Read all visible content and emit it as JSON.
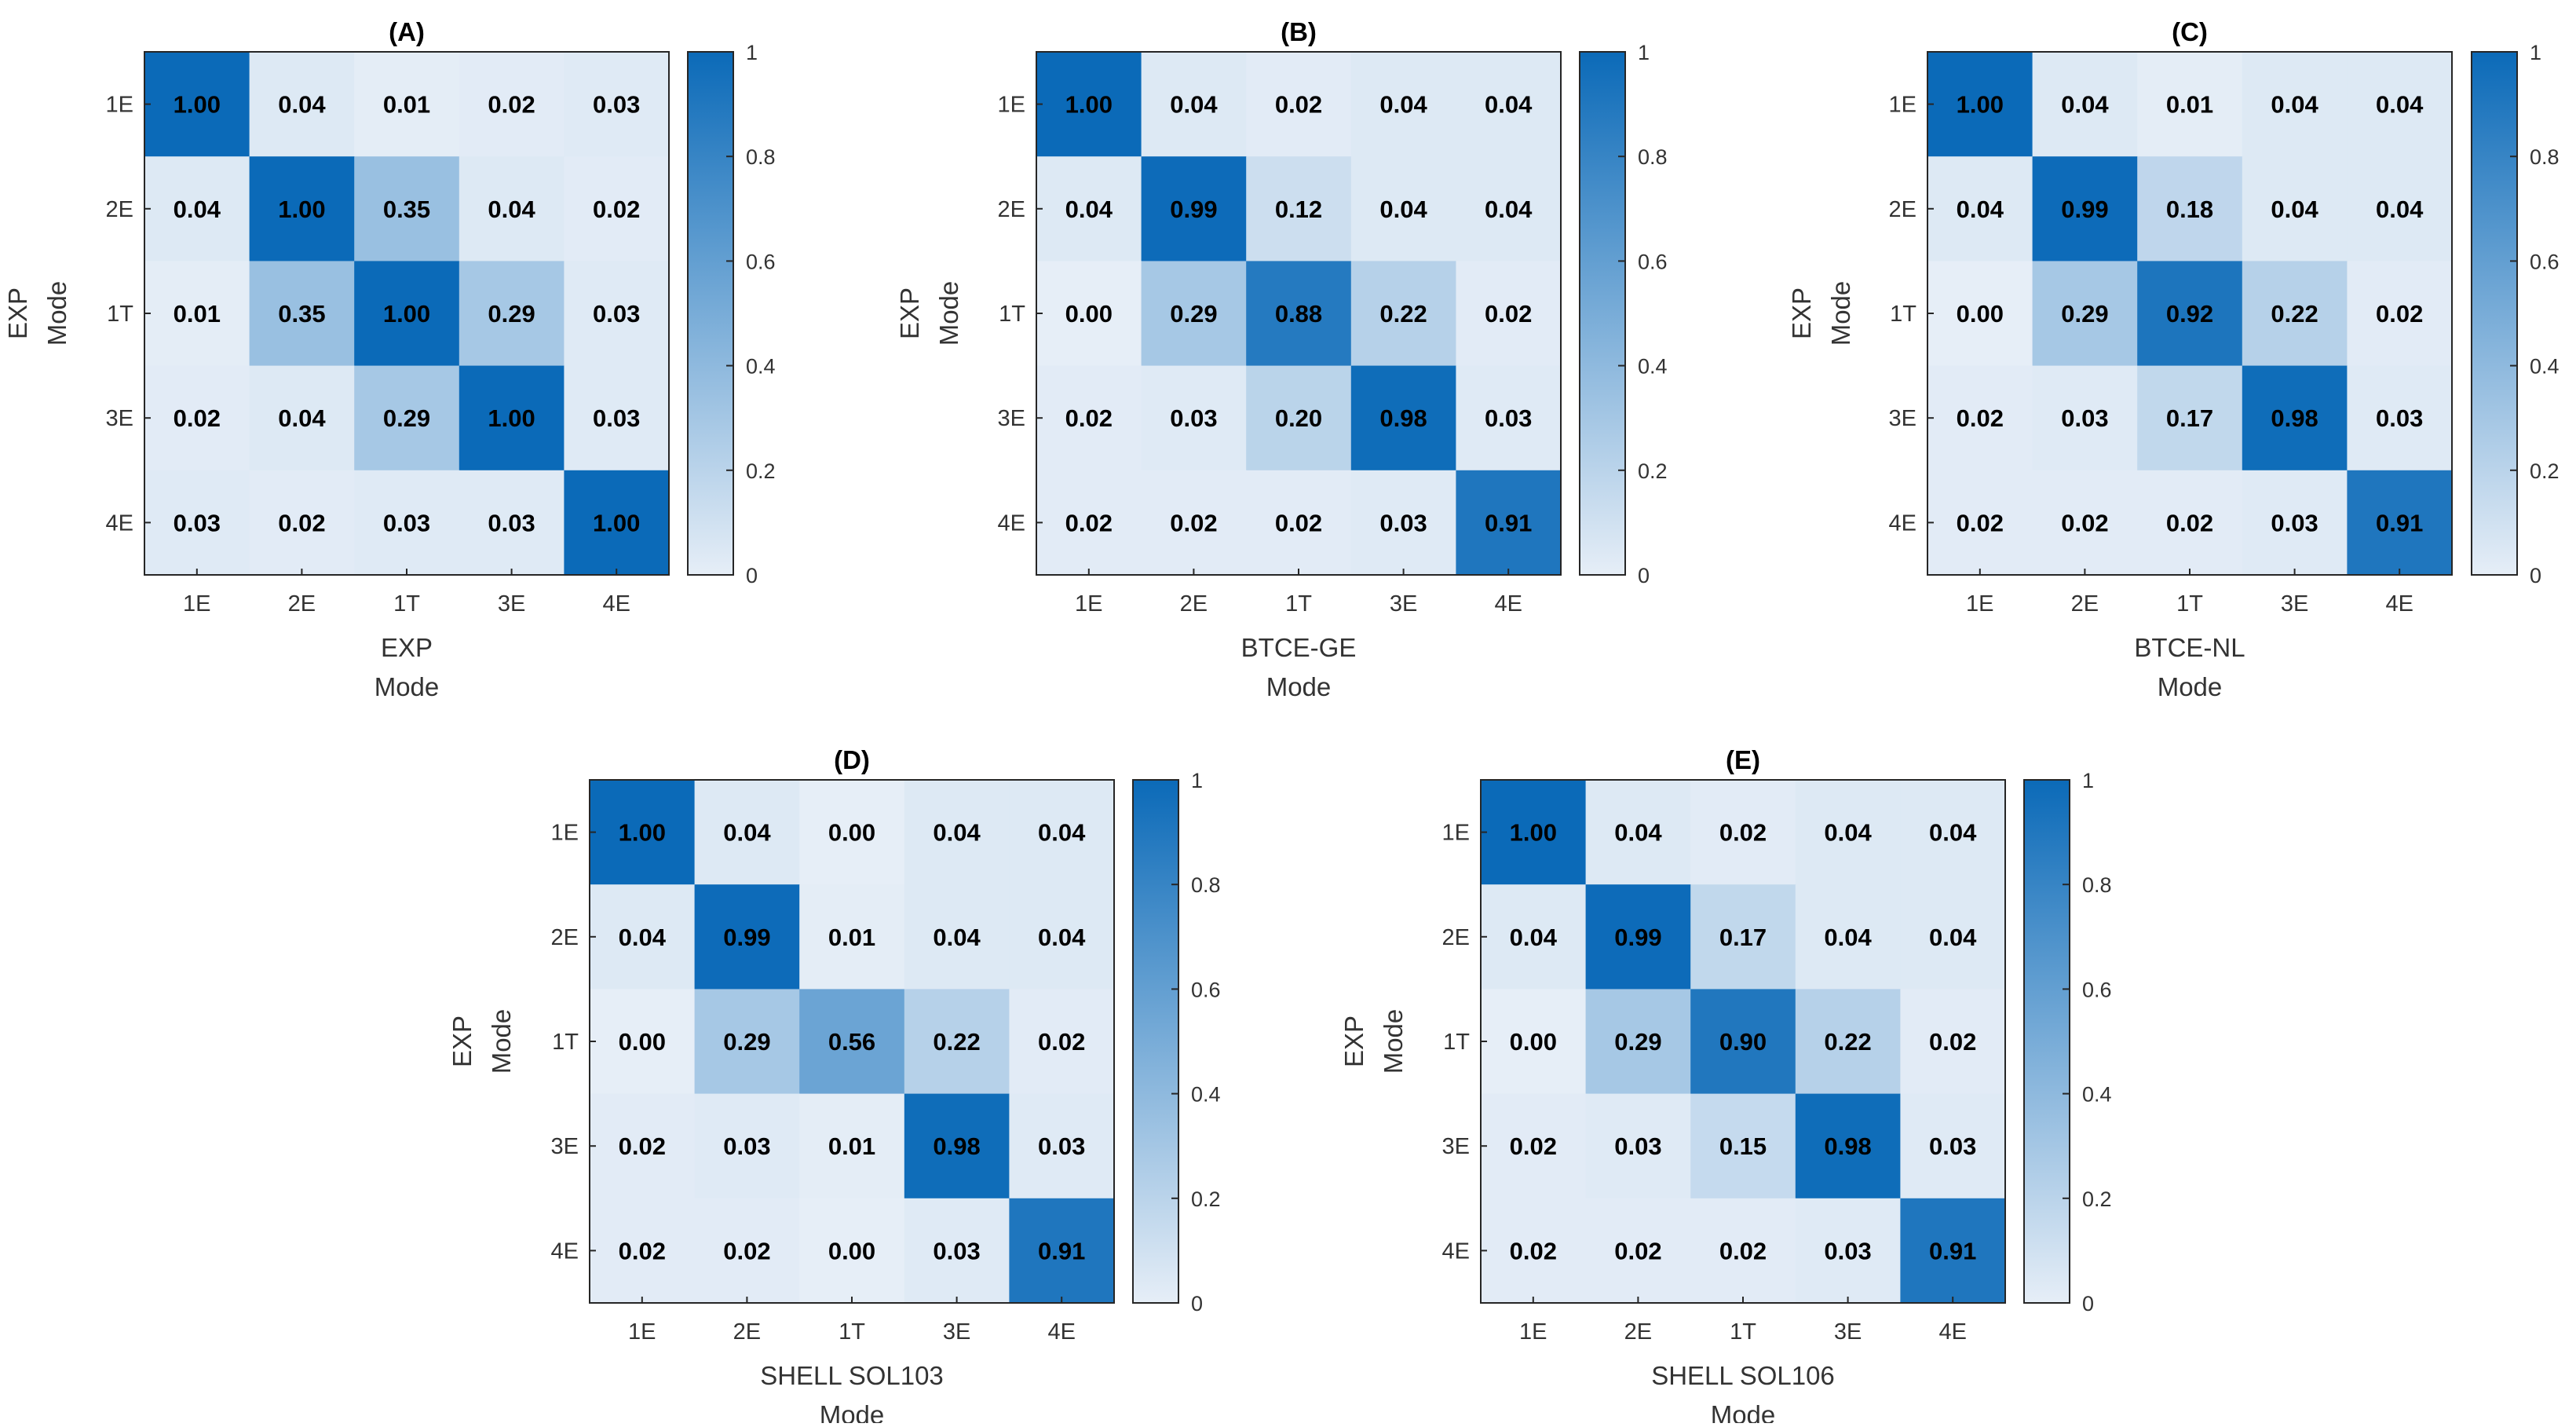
{
  "chart_data": [
    {
      "type": "heatmap",
      "title": "(A)",
      "xlabel": [
        "EXP",
        "Mode"
      ],
      "ylabel": [
        "EXP",
        "Mode"
      ],
      "x_categories": [
        "1E",
        "2E",
        "1T",
        "3E",
        "4E"
      ],
      "y_categories": [
        "1E",
        "2E",
        "1T",
        "3E",
        "4E"
      ],
      "values": [
        [
          "1.00",
          "0.04",
          "0.01",
          "0.02",
          "0.03"
        ],
        [
          "0.04",
          "1.00",
          "0.35",
          "0.04",
          "0.02"
        ],
        [
          "0.01",
          "0.35",
          "1.00",
          "0.29",
          "0.03"
        ],
        [
          "0.02",
          "0.04",
          "0.29",
          "1.00",
          "0.03"
        ],
        [
          "0.03",
          "0.02",
          "0.03",
          "0.03",
          "1.00"
        ]
      ],
      "colorbar": {
        "range": [
          0,
          1
        ],
        "ticks": [
          "0",
          "0.2",
          "0.4",
          "0.6",
          "0.8",
          "1"
        ]
      }
    },
    {
      "type": "heatmap",
      "title": "(B)",
      "xlabel": [
        "BTCE-GE",
        "Mode"
      ],
      "ylabel": [
        "EXP",
        "Mode"
      ],
      "x_categories": [
        "1E",
        "2E",
        "1T",
        "3E",
        "4E"
      ],
      "y_categories": [
        "1E",
        "2E",
        "1T",
        "3E",
        "4E"
      ],
      "values": [
        [
          "1.00",
          "0.04",
          "0.02",
          "0.04",
          "0.04"
        ],
        [
          "0.04",
          "0.99",
          "0.12",
          "0.04",
          "0.04"
        ],
        [
          "0.00",
          "0.29",
          "0.88",
          "0.22",
          "0.02"
        ],
        [
          "0.02",
          "0.03",
          "0.20",
          "0.98",
          "0.03"
        ],
        [
          "0.02",
          "0.02",
          "0.02",
          "0.03",
          "0.91"
        ]
      ],
      "colorbar": {
        "range": [
          0,
          1
        ],
        "ticks": [
          "0",
          "0.2",
          "0.4",
          "0.6",
          "0.8",
          "1"
        ]
      }
    },
    {
      "type": "heatmap",
      "title": "(C)",
      "xlabel": [
        "BTCE-NL",
        "Mode"
      ],
      "ylabel": [
        "EXP",
        "Mode"
      ],
      "x_categories": [
        "1E",
        "2E",
        "1T",
        "3E",
        "4E"
      ],
      "y_categories": [
        "1E",
        "2E",
        "1T",
        "3E",
        "4E"
      ],
      "values": [
        [
          "1.00",
          "0.04",
          "0.01",
          "0.04",
          "0.04"
        ],
        [
          "0.04",
          "0.99",
          "0.18",
          "0.04",
          "0.04"
        ],
        [
          "0.00",
          "0.29",
          "0.92",
          "0.22",
          "0.02"
        ],
        [
          "0.02",
          "0.03",
          "0.17",
          "0.98",
          "0.03"
        ],
        [
          "0.02",
          "0.02",
          "0.02",
          "0.03",
          "0.91"
        ]
      ],
      "colorbar": {
        "range": [
          0,
          1
        ],
        "ticks": [
          "0",
          "0.2",
          "0.4",
          "0.6",
          "0.8",
          "1"
        ]
      }
    },
    {
      "type": "heatmap",
      "title": "(D)",
      "xlabel": [
        "SHELL SOL103",
        "Mode"
      ],
      "ylabel": [
        "EXP",
        "Mode"
      ],
      "x_categories": [
        "1E",
        "2E",
        "1T",
        "3E",
        "4E"
      ],
      "y_categories": [
        "1E",
        "2E",
        "1T",
        "3E",
        "4E"
      ],
      "values": [
        [
          "1.00",
          "0.04",
          "0.00",
          "0.04",
          "0.04"
        ],
        [
          "0.04",
          "0.99",
          "0.01",
          "0.04",
          "0.04"
        ],
        [
          "0.00",
          "0.29",
          "0.56",
          "0.22",
          "0.02"
        ],
        [
          "0.02",
          "0.03",
          "0.01",
          "0.98",
          "0.03"
        ],
        [
          "0.02",
          "0.02",
          "0.00",
          "0.03",
          "0.91"
        ]
      ],
      "colorbar": {
        "range": [
          0,
          1
        ],
        "ticks": [
          "0",
          "0.2",
          "0.4",
          "0.6",
          "0.8",
          "1"
        ]
      }
    },
    {
      "type": "heatmap",
      "title": "(E)",
      "xlabel": [
        "SHELL SOL106",
        "Mode"
      ],
      "ylabel": [
        "EXP",
        "Mode"
      ],
      "x_categories": [
        "1E",
        "2E",
        "1T",
        "3E",
        "4E"
      ],
      "y_categories": [
        "1E",
        "2E",
        "1T",
        "3E",
        "4E"
      ],
      "values": [
        [
          "1.00",
          "0.04",
          "0.02",
          "0.04",
          "0.04"
        ],
        [
          "0.04",
          "0.99",
          "0.17",
          "0.04",
          "0.04"
        ],
        [
          "0.00",
          "0.29",
          "0.90",
          "0.22",
          "0.02"
        ],
        [
          "0.02",
          "0.03",
          "0.15",
          "0.98",
          "0.03"
        ],
        [
          "0.02",
          "0.02",
          "0.02",
          "0.03",
          "0.91"
        ]
      ],
      "colorbar": {
        "range": [
          0,
          1
        ],
        "ticks": [
          "0",
          "0.2",
          "0.4",
          "0.6",
          "0.8",
          "1"
        ]
      }
    }
  ],
  "colors": {
    "low": "#e6eef7",
    "high": "#0b6ab8",
    "axis": "#262626",
    "text": "#000000",
    "label": "#333333"
  }
}
